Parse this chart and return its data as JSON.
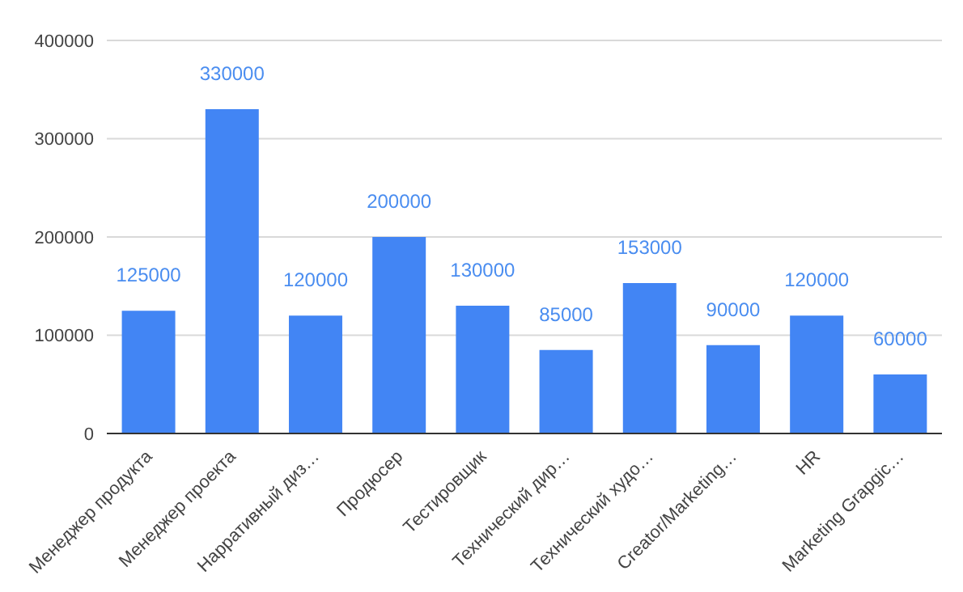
{
  "chart_data": {
    "type": "bar",
    "categories": [
      "Менеджер продукта",
      "Менеджер проекта",
      "Нарративный диз…",
      "Продюсер",
      "Тестировщик",
      "Технический дир…",
      "Технический худо…",
      "Creator/Marketing…",
      "HR",
      "Marketing Grapgic…"
    ],
    "values": [
      125000,
      330000,
      120000,
      200000,
      130000,
      85000,
      153000,
      90000,
      120000,
      60000
    ],
    "color": "#4285f4",
    "ylim": [
      0,
      400000
    ],
    "yticks": [
      0,
      100000,
      200000,
      300000,
      400000
    ],
    "grid": "y",
    "data_labels": true
  }
}
